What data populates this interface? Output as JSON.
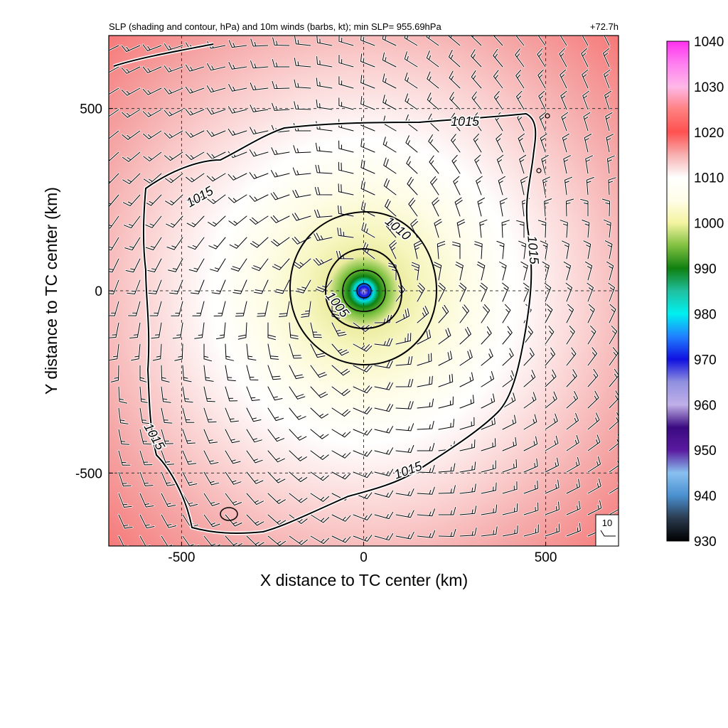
{
  "chart_data": {
    "type": "heatmap",
    "title": "SLP (shading and contour, hPa) and 10m winds (barbs, kt); min SLP= 955.69hPa",
    "time_label": "+72.7h",
    "xlabel": "X distance to TC center (km)",
    "ylabel": "Y distance to TC center (km)",
    "xlim": [
      -700,
      700
    ],
    "ylim": [
      -700,
      700
    ],
    "x_ticks": [
      -500,
      0,
      500
    ],
    "y_ticks": [
      -500,
      0,
      500
    ],
    "x_tick_labels": [
      "-500",
      "0",
      "500"
    ],
    "y_tick_labels": [
      "-500",
      "0",
      "500"
    ],
    "grid": true,
    "min_slp_hpa": 955.69,
    "center_km": [
      0,
      0
    ],
    "colorbar": {
      "range": [
        930,
        1040
      ],
      "ticks": [
        930,
        940,
        950,
        960,
        970,
        980,
        990,
        1000,
        1010,
        1020,
        1030,
        1040
      ],
      "tick_labels": [
        "930",
        "940",
        "950",
        "960",
        "970",
        "980",
        "990",
        "1000",
        "1010",
        "1020",
        "1030",
        "1040"
      ],
      "stops": [
        {
          "value": 930,
          "color": "#000000"
        },
        {
          "value": 935,
          "color": "#2a3a4e"
        },
        {
          "value": 940,
          "color": "#4a90d0"
        },
        {
          "value": 945,
          "color": "#88c0f0"
        },
        {
          "value": 950,
          "color": "#5a1aa0"
        },
        {
          "value": 955,
          "color": "#3a0a80"
        },
        {
          "value": 960,
          "color": "#c0b0e8"
        },
        {
          "value": 965,
          "color": "#9090e0"
        },
        {
          "value": 970,
          "color": "#1010e0"
        },
        {
          "value": 975,
          "color": "#2080ff"
        },
        {
          "value": 980,
          "color": "#00f0f0"
        },
        {
          "value": 985,
          "color": "#20c0a0"
        },
        {
          "value": 990,
          "color": "#108010"
        },
        {
          "value": 995,
          "color": "#80c040"
        },
        {
          "value": 1000,
          "color": "#f4f4a0"
        },
        {
          "value": 1005,
          "color": "#fffde8"
        },
        {
          "value": 1010,
          "color": "#ffffff"
        },
        {
          "value": 1015,
          "color": "#f7b0b0"
        },
        {
          "value": 1020,
          "color": "#ff5050"
        },
        {
          "value": 1025,
          "color": "#ff8080"
        },
        {
          "value": 1030,
          "color": "#ffb8e8"
        },
        {
          "value": 1035,
          "color": "#ff80f0"
        },
        {
          "value": 1040,
          "color": "#ff30f0"
        }
      ]
    },
    "contours": [
      {
        "level": 1005,
        "label": "1005",
        "approx_radius_km": 100
      },
      {
        "level": 1010,
        "label": "1010",
        "approx_radius_km": 200
      },
      {
        "level": 1015,
        "label": "1015",
        "approx_radius_km": 560,
        "labels_at_km": [
          [
            -450,
            250
          ],
          [
            160,
            470
          ],
          [
            460,
            110
          ],
          [
            -580,
            -410
          ],
          [
            120,
            -510
          ]
        ]
      }
    ],
    "wind_barbs": {
      "circulation": "counter-clockwise",
      "typical_speed_kt": [
        10,
        30
      ],
      "reference_vector_label": "10"
    }
  }
}
